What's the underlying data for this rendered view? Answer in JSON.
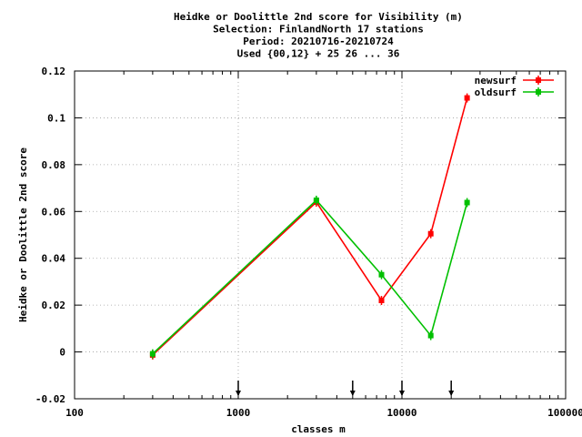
{
  "chart_data": {
    "type": "line",
    "title_lines": [
      "Heidke or Doolittle 2nd score  for Visibility (m)",
      "Selection: FinlandNorth     17 stations",
      "Period: 20210716-20210724",
      "Used {00,12} + 25 26 ... 36"
    ],
    "xlabel": "classes m",
    "ylabel": "Heidke or Doolittle 2nd score",
    "x_scale": "log",
    "xlim": [
      100,
      100000
    ],
    "ylim": [
      -0.02,
      0.12
    ],
    "x_ticks": [
      100,
      1000,
      10000,
      100000
    ],
    "x_tick_labels": [
      "100",
      "1000",
      "10000",
      "100000"
    ],
    "y_ticks": [
      -0.02,
      0,
      0.02,
      0.04,
      0.06,
      0.08,
      0.1,
      0.12
    ],
    "y_tick_labels": [
      "-0.02",
      "0",
      "0.02",
      "0.04",
      "0.06",
      "0.08",
      "0.1",
      "0.12"
    ],
    "grid": true,
    "legend_position": "top-right",
    "class_markers_x": [
      1000,
      5000,
      10000,
      20000
    ],
    "series": [
      {
        "name": "newsurf",
        "color": "#ff0000",
        "x": [
          300,
          3000,
          7500,
          15000,
          25000
        ],
        "y": [
          -0.0013,
          0.064,
          0.022,
          0.0505,
          0.1085
        ]
      },
      {
        "name": "oldsurf",
        "color": "#00c000",
        "x": [
          300,
          3000,
          7500,
          15000,
          25000
        ],
        "y": [
          -0.0008,
          0.0648,
          0.033,
          0.007,
          0.0638
        ]
      }
    ]
  }
}
